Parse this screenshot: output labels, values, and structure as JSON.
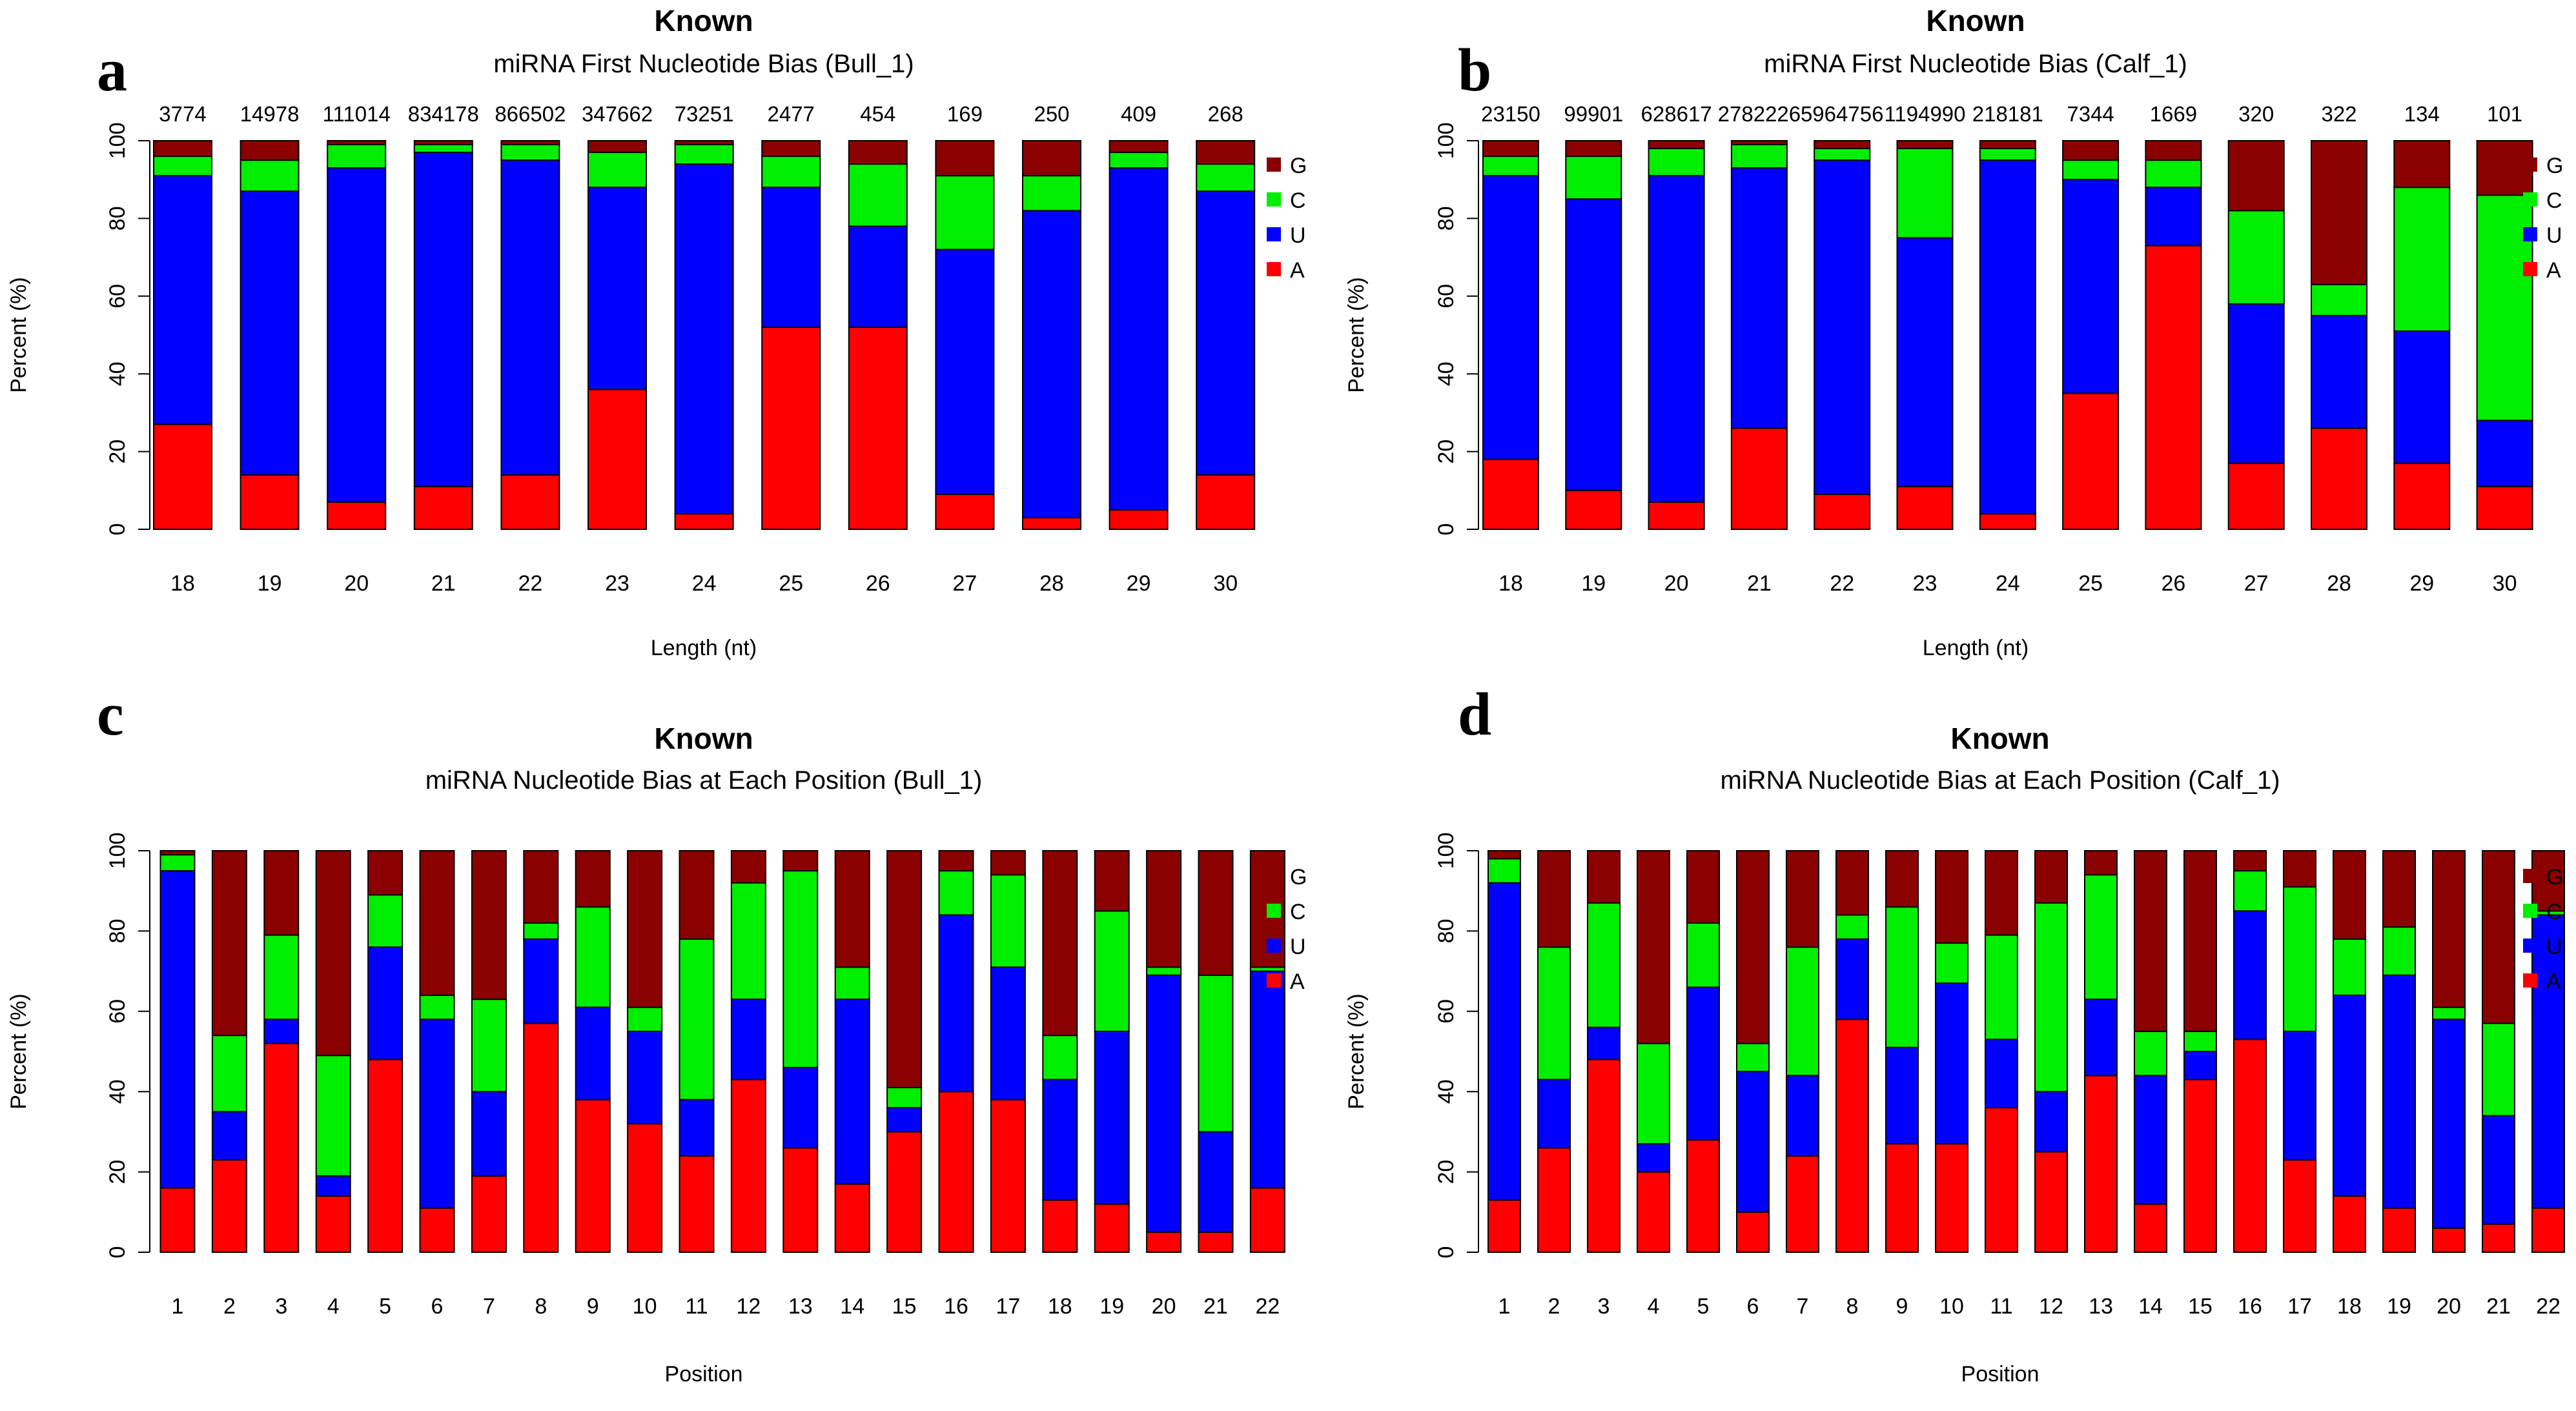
{
  "colors": {
    "G": "#8B0000",
    "C": "#00EE00",
    "U": "#0000FF",
    "A": "#FF0000"
  },
  "panels": [
    {
      "letter": "a",
      "title_top": "Known",
      "title": "miRNA First Nucleotide Bias (Bull_1)",
      "xlabel": "Length (nt)",
      "ylabel": "Percent (%)",
      "ytick_labels": [
        "0",
        "20",
        "40",
        "60",
        "80",
        "100"
      ],
      "legend": [
        "G",
        "C",
        "U",
        "A"
      ],
      "counts": [
        "3774",
        "14978",
        "111014",
        "834178",
        "866502",
        "347662",
        "73251",
        "2477",
        "454",
        "169",
        "250",
        "409",
        "268"
      ]
    },
    {
      "letter": "b",
      "title_top": "Known",
      "title": "miRNA First Nucleotide Bias (Calf_1)",
      "xlabel": "Length (nt)",
      "ylabel": "Percent (%)",
      "ytick_labels": [
        "0",
        "20",
        "40",
        "60",
        "80",
        "100"
      ],
      "legend": [
        "G",
        "C",
        "U",
        "A"
      ],
      "counts": [
        "23150",
        "99901",
        "628617",
        "2782226",
        "5964756",
        "1194990",
        "218181",
        "7344",
        "1669",
        "320",
        "322",
        "134",
        "101"
      ]
    },
    {
      "letter": "c",
      "title_top": "Known",
      "title": "miRNA Nucleotide Bias at Each Position (Bull_1)",
      "xlabel": "Position",
      "ylabel": "Percent (%)",
      "ytick_labels": [
        "0",
        "20",
        "40",
        "60",
        "80",
        "100"
      ],
      "legend": [
        "G",
        "C",
        "U",
        "A"
      ]
    },
    {
      "letter": "d",
      "title_top": "Known",
      "title": "miRNA Nucleotide Bias at Each Position (Calf_1)",
      "xlabel": "Position",
      "ylabel": "Percent (%)",
      "ytick_labels": [
        "0",
        "20",
        "40",
        "60",
        "80",
        "100"
      ],
      "legend": [
        "G",
        "C",
        "U",
        "A"
      ]
    }
  ],
  "chart_data": [
    {
      "type": "bar",
      "stacked": true,
      "title": "Known miRNA First Nucleotide Bias (Bull_1)",
      "xlabel": "Length (nt)",
      "ylabel": "Percent (%)",
      "ylim": [
        0,
        100
      ],
      "categories": [
        "18",
        "19",
        "20",
        "21",
        "22",
        "23",
        "24",
        "25",
        "26",
        "27",
        "28",
        "29",
        "30"
      ],
      "series": [
        {
          "name": "A",
          "values": [
            27,
            14,
            7,
            11,
            14,
            36,
            4,
            52,
            52,
            9,
            3,
            5,
            14
          ]
        },
        {
          "name": "U",
          "values": [
            64,
            73,
            86,
            86,
            81,
            52,
            90,
            36,
            26,
            63,
            79,
            88,
            73
          ]
        },
        {
          "name": "C",
          "values": [
            5,
            8,
            6,
            2,
            4,
            9,
            5,
            8,
            16,
            19,
            9,
            4,
            7
          ]
        },
        {
          "name": "G",
          "values": [
            4,
            5,
            1,
            1,
            1,
            3,
            1,
            4,
            6,
            9,
            9,
            3,
            6
          ]
        }
      ]
    },
    {
      "type": "bar",
      "stacked": true,
      "title": "Known miRNA First Nucleotide Bias (Calf_1)",
      "xlabel": "Length (nt)",
      "ylabel": "Percent (%)",
      "ylim": [
        0,
        100
      ],
      "categories": [
        "18",
        "19",
        "20",
        "21",
        "22",
        "23",
        "24",
        "25",
        "26",
        "27",
        "28",
        "29",
        "30"
      ],
      "series": [
        {
          "name": "A",
          "values": [
            18,
            10,
            7,
            26,
            9,
            11,
            4,
            35,
            73,
            17,
            26,
            17,
            11
          ]
        },
        {
          "name": "U",
          "values": [
            73,
            75,
            84,
            67,
            86,
            64,
            91,
            55,
            15,
            41,
            29,
            34,
            17
          ]
        },
        {
          "name": "C",
          "values": [
            5,
            11,
            7,
            6,
            3,
            23,
            3,
            5,
            7,
            24,
            8,
            37,
            58
          ]
        },
        {
          "name": "G",
          "values": [
            4,
            4,
            2,
            1,
            2,
            2,
            2,
            5,
            5,
            18,
            37,
            12,
            14
          ]
        }
      ]
    },
    {
      "type": "bar",
      "stacked": true,
      "title": "Known miRNA Nucleotide Bias at Each Position (Bull_1)",
      "xlabel": "Position",
      "ylabel": "Percent (%)",
      "ylim": [
        0,
        100
      ],
      "categories": [
        "1",
        "2",
        "3",
        "4",
        "5",
        "6",
        "7",
        "8",
        "9",
        "10",
        "11",
        "12",
        "13",
        "14",
        "15",
        "16",
        "17",
        "18",
        "19",
        "20",
        "21",
        "22"
      ],
      "series": [
        {
          "name": "A",
          "values": [
            16,
            23,
            52,
            14,
            48,
            11,
            19,
            57,
            38,
            32,
            24,
            43,
            26,
            17,
            30,
            40,
            38,
            13,
            12,
            5,
            5,
            16
          ]
        },
        {
          "name": "U",
          "values": [
            79,
            12,
            6,
            5,
            28,
            47,
            21,
            21,
            23,
            23,
            14,
            20,
            20,
            46,
            6,
            44,
            33,
            30,
            43,
            64,
            25,
            54
          ]
        },
        {
          "name": "C",
          "values": [
            4,
            19,
            21,
            30,
            13,
            6,
            23,
            4,
            25,
            6,
            40,
            29,
            49,
            8,
            5,
            11,
            23,
            11,
            30,
            2,
            39,
            1
          ]
        },
        {
          "name": "G",
          "values": [
            1,
            46,
            21,
            51,
            11,
            36,
            37,
            18,
            14,
            39,
            22,
            8,
            5,
            29,
            59,
            5,
            6,
            46,
            15,
            29,
            31,
            29
          ]
        }
      ]
    },
    {
      "type": "bar",
      "stacked": true,
      "title": "Known miRNA Nucleotide Bias at Each Position (Calf_1)",
      "xlabel": "Position",
      "ylabel": "Percent (%)",
      "ylim": [
        0,
        100
      ],
      "categories": [
        "1",
        "2",
        "3",
        "4",
        "5",
        "6",
        "7",
        "8",
        "9",
        "10",
        "11",
        "12",
        "13",
        "14",
        "15",
        "16",
        "17",
        "18",
        "19",
        "20",
        "21",
        "22"
      ],
      "series": [
        {
          "name": "A",
          "values": [
            13,
            26,
            48,
            20,
            28,
            10,
            24,
            58,
            27,
            27,
            36,
            25,
            44,
            12,
            43,
            53,
            23,
            14,
            11,
            6,
            7,
            11
          ]
        },
        {
          "name": "U",
          "values": [
            79,
            17,
            8,
            7,
            38,
            35,
            20,
            20,
            24,
            40,
            17,
            15,
            19,
            32,
            7,
            32,
            32,
            50,
            58,
            52,
            27,
            73
          ]
        },
        {
          "name": "C",
          "values": [
            6,
            33,
            31,
            25,
            16,
            7,
            32,
            6,
            35,
            10,
            26,
            47,
            31,
            11,
            5,
            10,
            36,
            14,
            12,
            3,
            23,
            1
          ]
        },
        {
          "name": "G",
          "values": [
            2,
            24,
            13,
            48,
            18,
            48,
            24,
            16,
            14,
            23,
            21,
            13,
            6,
            45,
            45,
            5,
            9,
            22,
            19,
            39,
            43,
            15
          ]
        }
      ]
    }
  ]
}
